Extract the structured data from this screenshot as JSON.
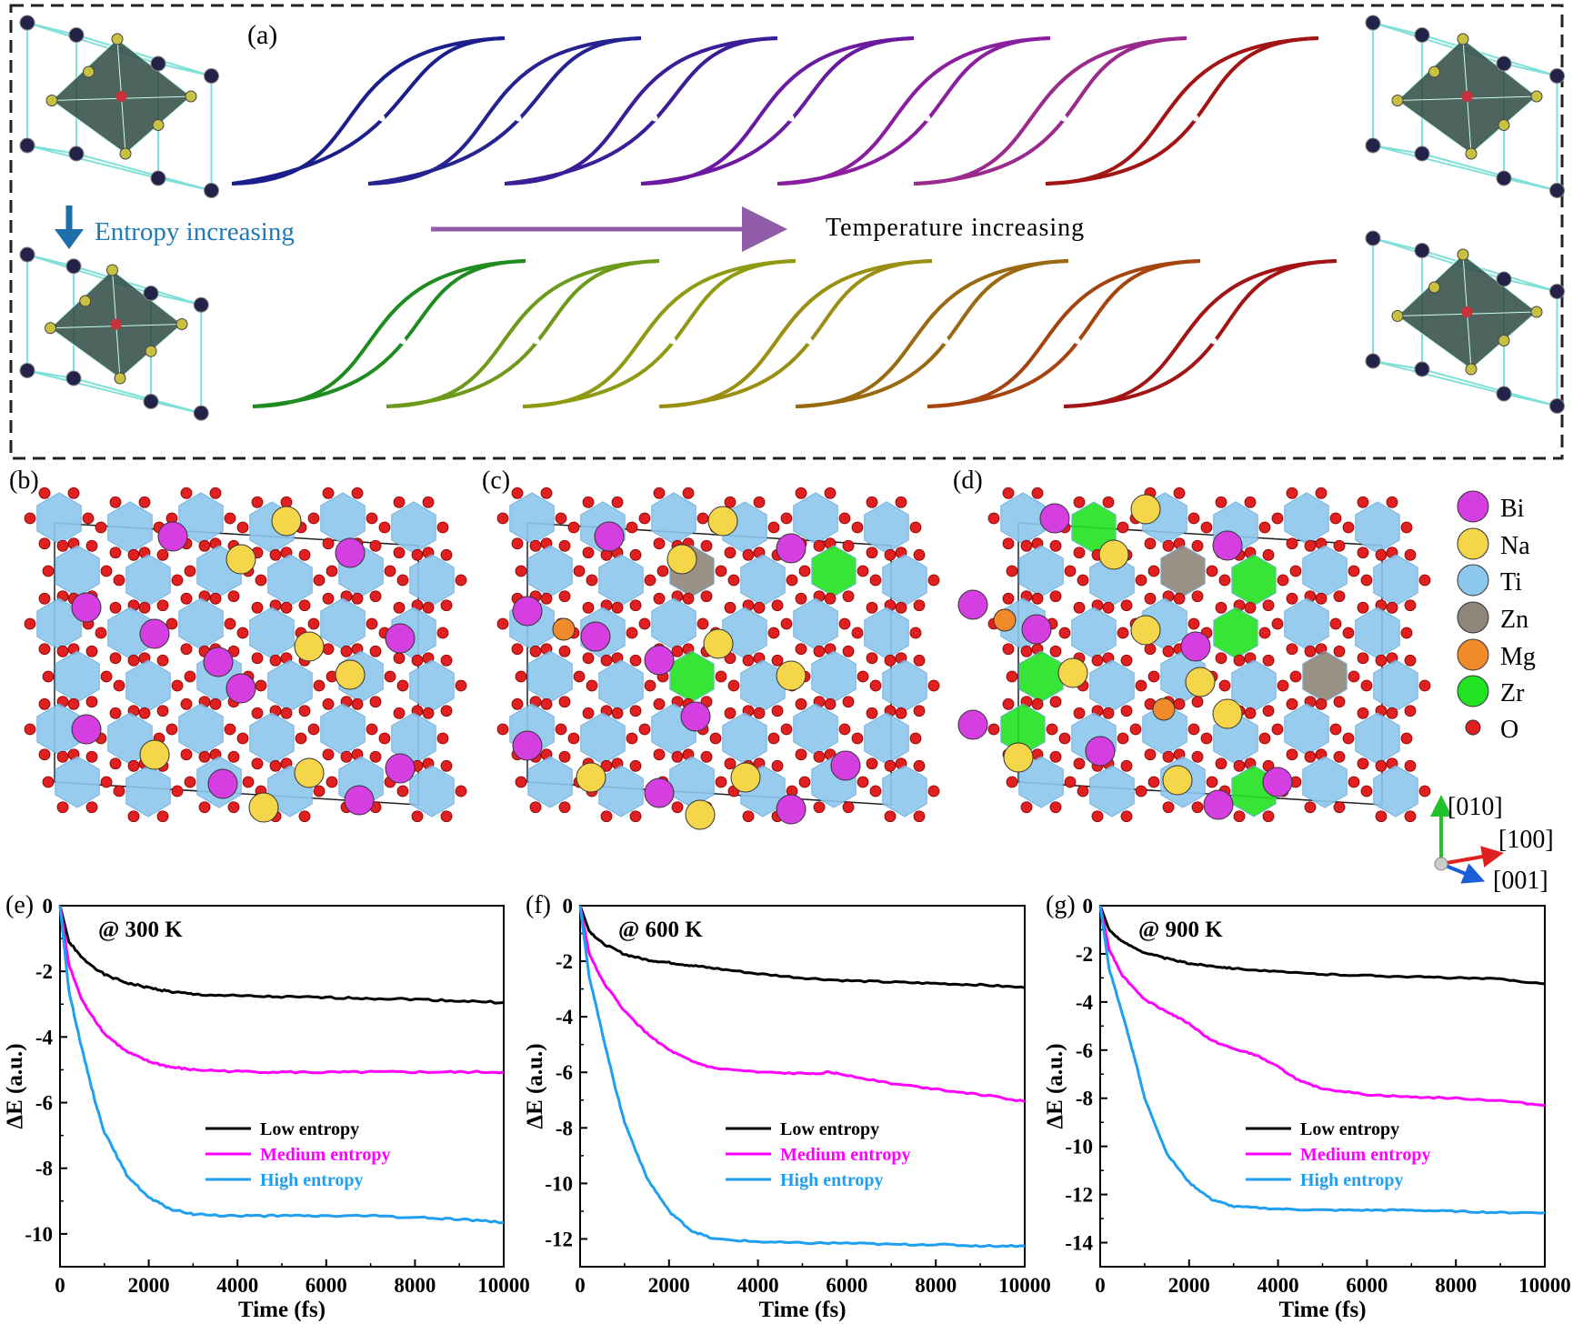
{
  "panel_a": {
    "label": "(a)",
    "entropy_text": "Entropy increasing",
    "temperature_text": "Temperature increasing",
    "top_loop_colors": [
      "#1b1f8c",
      "#25238f",
      "#3b1d96",
      "#6a1aa0",
      "#8a1e9e",
      "#9a2a8c",
      "#a31414"
    ],
    "bottom_loop_colors": [
      "#1e8c1e",
      "#6d9a1a",
      "#8f9a12",
      "#9a8f12",
      "#9a6a12",
      "#a64410",
      "#a31414"
    ]
  },
  "structures": {
    "labels": [
      "(b)",
      "(c)",
      "(d)"
    ],
    "legend": [
      {
        "label": "Bi",
        "color": "#d53ee0"
      },
      {
        "label": "Na",
        "color": "#f5d54a"
      },
      {
        "label": "Ti",
        "color": "#8cc7ee"
      },
      {
        "label": "Zn",
        "color": "#8e8679"
      },
      {
        "label": "Mg",
        "color": "#f08a2b"
      },
      {
        "label": "Zr",
        "color": "#22e322"
      },
      {
        "label": "O",
        "color": "#e02020"
      }
    ],
    "axes": {
      "y": "[010]",
      "x": "[100]",
      "z": "[001]"
    }
  },
  "chart_data": [
    {
      "type": "line",
      "panel": "(e)",
      "annotation": "@ 300 K",
      "xlabel": "Time (fs)",
      "ylabel": "ΔE (a.u.)",
      "xlim": [
        0,
        10000
      ],
      "ylim": [
        -11,
        0
      ],
      "xticks": [
        0,
        2000,
        4000,
        6000,
        8000,
        10000
      ],
      "yticks": [
        0,
        -2,
        -4,
        -6,
        -8,
        -10
      ],
      "series": [
        {
          "name": "Low entropy",
          "color": "#000000",
          "x": [
            0,
            200,
            500,
            1000,
            1500,
            2000,
            2500,
            3000,
            4000,
            5000,
            6000,
            7000,
            8000,
            9000,
            10000
          ],
          "y": [
            0,
            -1.1,
            -1.6,
            -2.1,
            -2.35,
            -2.5,
            -2.62,
            -2.7,
            -2.75,
            -2.78,
            -2.8,
            -2.82,
            -2.85,
            -2.9,
            -2.95
          ]
        },
        {
          "name": "Medium entropy",
          "color": "#ff00ff",
          "x": [
            0,
            200,
            500,
            1000,
            1500,
            2000,
            2500,
            3000,
            4000,
            5000,
            6000,
            7000,
            8000,
            9000,
            10000
          ],
          "y": [
            0,
            -1.8,
            -2.9,
            -3.9,
            -4.45,
            -4.75,
            -4.92,
            -5.0,
            -5.05,
            -5.07,
            -5.08,
            -5.07,
            -5.07,
            -5.07,
            -5.07
          ]
        },
        {
          "name": "High entropy",
          "color": "#1e9ff0",
          "x": [
            0,
            200,
            500,
            800,
            1000,
            1500,
            2000,
            2500,
            3000,
            4000,
            5000,
            6000,
            7000,
            8000,
            9000,
            10000
          ],
          "y": [
            0,
            -2.6,
            -4.4,
            -6.0,
            -6.9,
            -8.2,
            -8.9,
            -9.25,
            -9.4,
            -9.45,
            -9.45,
            -9.45,
            -9.45,
            -9.5,
            -9.55,
            -9.65
          ]
        }
      ]
    },
    {
      "type": "line",
      "panel": "(f)",
      "annotation": "@ 600 K",
      "xlabel": "Time (fs)",
      "ylabel": "ΔE (a.u.)",
      "xlim": [
        0,
        10000
      ],
      "ylim": [
        -13,
        0
      ],
      "xticks": [
        0,
        2000,
        4000,
        6000,
        8000,
        10000
      ],
      "yticks": [
        0,
        -2,
        -4,
        -6,
        -8,
        -10,
        -12
      ],
      "series": [
        {
          "name": "Low entropy",
          "color": "#000000",
          "x": [
            0,
            200,
            500,
            1000,
            1500,
            2000,
            2500,
            3000,
            4000,
            5000,
            6000,
            7000,
            8000,
            9000,
            10000
          ],
          "y": [
            0,
            -0.9,
            -1.35,
            -1.75,
            -1.95,
            -2.05,
            -2.15,
            -2.25,
            -2.45,
            -2.6,
            -2.7,
            -2.75,
            -2.8,
            -2.85,
            -2.95
          ]
        },
        {
          "name": "Medium entropy",
          "color": "#ff00ff",
          "x": [
            0,
            200,
            500,
            1000,
            1500,
            2000,
            2500,
            3000,
            4000,
            5000,
            5600,
            6000,
            7000,
            8000,
            9000,
            10000
          ],
          "y": [
            0,
            -1.7,
            -2.7,
            -3.8,
            -4.6,
            -5.2,
            -5.6,
            -5.85,
            -6.0,
            -6.05,
            -6.0,
            -6.1,
            -6.4,
            -6.6,
            -6.8,
            -7.05
          ]
        },
        {
          "name": "High entropy",
          "color": "#1e9ff0",
          "x": [
            0,
            200,
            500,
            800,
            1000,
            1500,
            2000,
            2500,
            3000,
            4000,
            5000,
            6000,
            7000,
            8000,
            9000,
            10000
          ],
          "y": [
            0,
            -2.5,
            -4.6,
            -6.6,
            -7.8,
            -9.8,
            -11.0,
            -11.7,
            -12.0,
            -12.1,
            -12.15,
            -12.15,
            -12.2,
            -12.2,
            -12.25,
            -12.25
          ]
        }
      ]
    },
    {
      "type": "line",
      "panel": "(g)",
      "annotation": "@ 900 K",
      "xlabel": "Time (fs)",
      "ylabel": "ΔE (a.u.)",
      "xlim": [
        0,
        10000
      ],
      "ylim": [
        -15,
        0
      ],
      "xticks": [
        0,
        2000,
        4000,
        6000,
        8000,
        10000
      ],
      "yticks": [
        0,
        -2,
        -4,
        -6,
        -8,
        -10,
        -12,
        -14
      ],
      "series": [
        {
          "name": "Low entropy",
          "color": "#000000",
          "x": [
            0,
            200,
            500,
            1000,
            1500,
            2000,
            2500,
            3000,
            4000,
            5000,
            6000,
            7000,
            8000,
            9000,
            10000
          ],
          "y": [
            0,
            -1.0,
            -1.5,
            -1.95,
            -2.2,
            -2.4,
            -2.5,
            -2.6,
            -2.75,
            -2.85,
            -2.9,
            -2.95,
            -3.0,
            -3.05,
            -3.25
          ]
        },
        {
          "name": "Medium entropy",
          "color": "#ff00ff",
          "x": [
            0,
            200,
            500,
            1000,
            1500,
            2000,
            2500,
            3000,
            3500,
            4000,
            4500,
            5000,
            6000,
            7000,
            8000,
            9000,
            10000
          ],
          "y": [
            0,
            -1.8,
            -2.9,
            -3.9,
            -4.4,
            -4.9,
            -5.6,
            -5.95,
            -6.2,
            -6.7,
            -7.3,
            -7.6,
            -7.85,
            -7.95,
            -8.0,
            -8.1,
            -8.3
          ]
        },
        {
          "name": "High entropy",
          "color": "#1e9ff0",
          "x": [
            0,
            200,
            500,
            800,
            1000,
            1500,
            2000,
            2500,
            3000,
            4000,
            5000,
            6000,
            7000,
            8000,
            9000,
            10000
          ],
          "y": [
            0,
            -2.6,
            -4.5,
            -6.5,
            -8.0,
            -10.3,
            -11.5,
            -12.2,
            -12.5,
            -12.6,
            -12.65,
            -12.65,
            -12.65,
            -12.7,
            -12.75,
            -12.75
          ]
        }
      ]
    }
  ]
}
